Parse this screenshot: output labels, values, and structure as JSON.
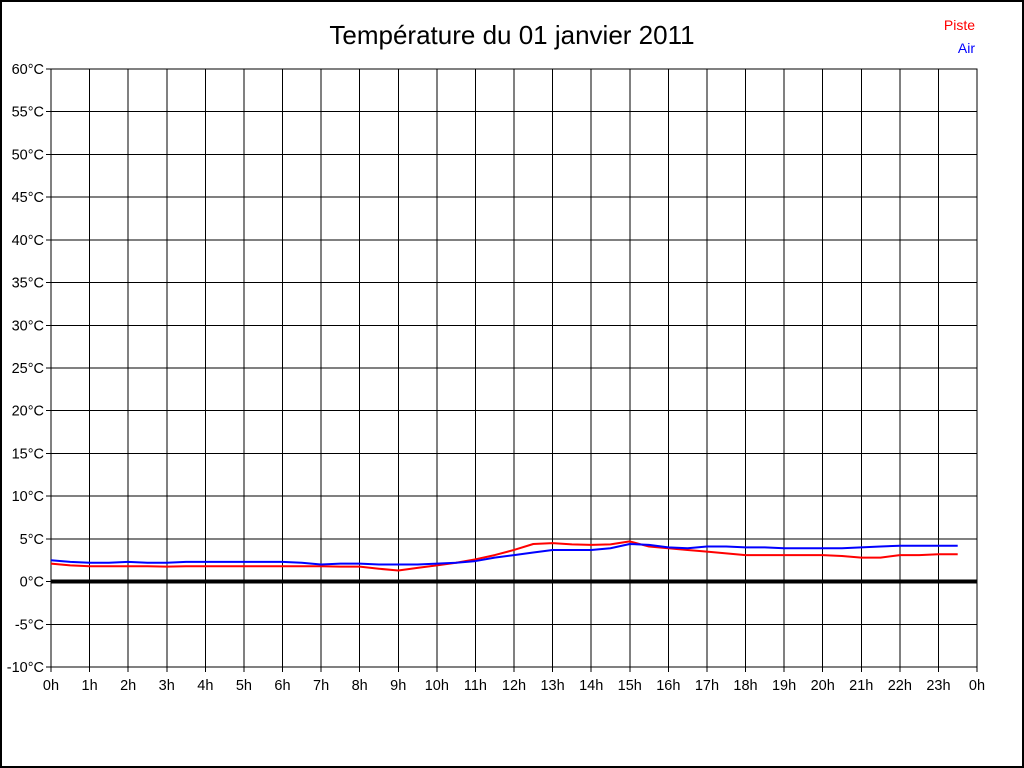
{
  "window": {
    "background": "#ffffff",
    "border_color": "#000000"
  },
  "header": {
    "title": "Température du 01 janvier 2011"
  },
  "legend": {
    "position": "top-right",
    "items": [
      {
        "label": "Piste",
        "color": "#ff0000"
      },
      {
        "label": "Air",
        "color": "#0000ff"
      }
    ]
  },
  "chart_data": {
    "type": "line",
    "title": "Température du 01 janvier 2011",
    "xlabel": "",
    "ylabel": "",
    "xlim": [
      0,
      24
    ],
    "ylim": [
      -10,
      60
    ],
    "grid": true,
    "grid_color": "#000000",
    "axis_color": "#000000",
    "zero_line": {
      "value": 0,
      "color": "#000000",
      "thickness": 4
    },
    "y_ticks": [
      {
        "value": 60,
        "label": "60°C"
      },
      {
        "value": 55,
        "label": "55°C"
      },
      {
        "value": 50,
        "label": "50°C"
      },
      {
        "value": 45,
        "label": "45°C"
      },
      {
        "value": 40,
        "label": "40°C"
      },
      {
        "value": 35,
        "label": "35°C"
      },
      {
        "value": 30,
        "label": "30°C"
      },
      {
        "value": 25,
        "label": "25°C"
      },
      {
        "value": 20,
        "label": "20°C"
      },
      {
        "value": 15,
        "label": "15°C"
      },
      {
        "value": 10,
        "label": "10°C"
      },
      {
        "value": 5,
        "label": "5°C"
      },
      {
        "value": 0,
        "label": "0°C"
      },
      {
        "value": -5,
        "label": "-5°C"
      },
      {
        "value": -10,
        "label": "-10°C"
      }
    ],
    "x_ticks": [
      {
        "hour": 0,
        "label": "0h"
      },
      {
        "hour": 1,
        "label": "1h"
      },
      {
        "hour": 2,
        "label": "2h"
      },
      {
        "hour": 3,
        "label": "3h"
      },
      {
        "hour": 4,
        "label": "4h"
      },
      {
        "hour": 5,
        "label": "5h"
      },
      {
        "hour": 6,
        "label": "6h"
      },
      {
        "hour": 7,
        "label": "7h"
      },
      {
        "hour": 8,
        "label": "8h"
      },
      {
        "hour": 9,
        "label": "9h"
      },
      {
        "hour": 10,
        "label": "10h"
      },
      {
        "hour": 11,
        "label": "11h"
      },
      {
        "hour": 12,
        "label": "12h"
      },
      {
        "hour": 13,
        "label": "13h"
      },
      {
        "hour": 14,
        "label": "14h"
      },
      {
        "hour": 15,
        "label": "15h"
      },
      {
        "hour": 16,
        "label": "16h"
      },
      {
        "hour": 17,
        "label": "17h"
      },
      {
        "hour": 18,
        "label": "18h"
      },
      {
        "hour": 19,
        "label": "19h"
      },
      {
        "hour": 20,
        "label": "20h"
      },
      {
        "hour": 21,
        "label": "21h"
      },
      {
        "hour": 22,
        "label": "22h"
      },
      {
        "hour": 23,
        "label": "23h"
      },
      {
        "hour": 24,
        "label": "0h"
      }
    ],
    "x": [
      0,
      0.5,
      1,
      1.5,
      2,
      2.5,
      3,
      3.5,
      4,
      4.5,
      5,
      5.5,
      6,
      6.5,
      7,
      7.5,
      8,
      8.5,
      9,
      9.5,
      10,
      10.5,
      11,
      11.5,
      12,
      12.5,
      13,
      13.5,
      14,
      14.5,
      15,
      15.5,
      16,
      16.5,
      17,
      17.5,
      18,
      18.5,
      19,
      19.5,
      20,
      20.5,
      21,
      21.5,
      22,
      22.5,
      23,
      23.5
    ],
    "series": [
      {
        "name": "Piste",
        "color": "#ff0000",
        "values": [
          2.1,
          1.9,
          1.8,
          1.8,
          1.8,
          1.8,
          1.75,
          1.8,
          1.8,
          1.8,
          1.8,
          1.8,
          1.8,
          1.8,
          1.8,
          1.75,
          1.75,
          1.5,
          1.3,
          1.6,
          1.9,
          2.2,
          2.6,
          3.1,
          3.7,
          4.4,
          4.5,
          4.35,
          4.3,
          4.35,
          4.7,
          4.1,
          3.9,
          3.7,
          3.5,
          3.3,
          3.1,
          3.1,
          3.1,
          3.1,
          3.1,
          3.0,
          2.8,
          2.8,
          3.1,
          3.1,
          3.2,
          3.2
        ]
      },
      {
        "name": "Air",
        "color": "#0000ff",
        "values": [
          2.5,
          2.3,
          2.2,
          2.2,
          2.3,
          2.2,
          2.2,
          2.3,
          2.3,
          2.3,
          2.3,
          2.3,
          2.3,
          2.2,
          2.0,
          2.1,
          2.1,
          2.0,
          2.0,
          2.0,
          2.1,
          2.2,
          2.4,
          2.8,
          3.1,
          3.4,
          3.7,
          3.7,
          3.7,
          3.9,
          4.4,
          4.3,
          4.0,
          3.9,
          4.1,
          4.1,
          4.0,
          4.0,
          3.9,
          3.9,
          3.9,
          3.9,
          4.0,
          4.1,
          4.2,
          4.2,
          4.2,
          4.2
        ]
      }
    ],
    "legend_position": "top-right"
  }
}
